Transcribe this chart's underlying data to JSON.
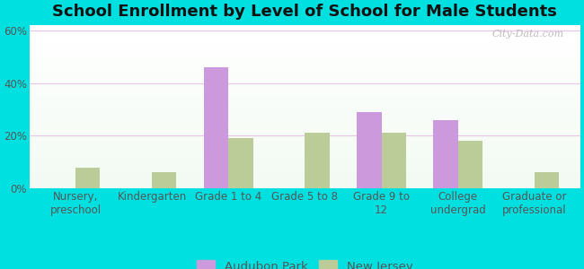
{
  "title": "School Enrollment by Level of School for Male Students",
  "categories": [
    "Nursery,\npreschool",
    "Kindergarten",
    "Grade 1 to 4",
    "Grade 5 to 8",
    "Grade 9 to\n12",
    "College\nundergrad",
    "Graduate or\nprofessional"
  ],
  "audubon_park": [
    0,
    0,
    46,
    0,
    29,
    26,
    0
  ],
  "new_jersey": [
    8,
    6,
    19,
    21,
    21,
    18,
    6
  ],
  "audubon_color": "#cc99dd",
  "nj_color": "#bbcc99",
  "bg_color": "#00e0e0",
  "ylim": [
    0,
    62
  ],
  "yticks": [
    0,
    20,
    40,
    60
  ],
  "ytick_labels": [
    "0%",
    "20%",
    "40%",
    "60%"
  ],
  "legend_labels": [
    "Audubon Park",
    "New Jersey"
  ],
  "title_fontsize": 13,
  "tick_fontsize": 8.5,
  "legend_fontsize": 9.5,
  "watermark": "City-Data.com",
  "bar_width": 0.32
}
